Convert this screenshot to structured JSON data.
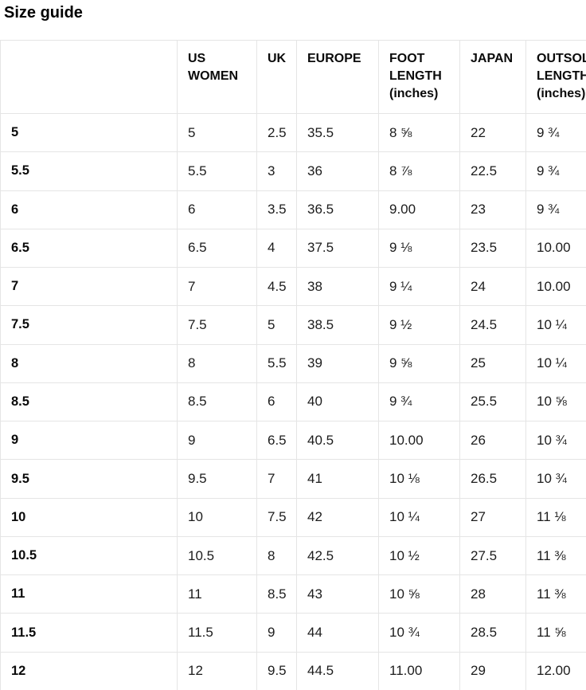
{
  "page": {
    "title": "Size guide"
  },
  "table": {
    "columns": [
      {
        "key": "size",
        "label": ""
      },
      {
        "key": "us-women",
        "label": "US WOMEN"
      },
      {
        "key": "uk",
        "label": "UK"
      },
      {
        "key": "europe",
        "label": "EUROPE"
      },
      {
        "key": "foot-length",
        "label": "FOOT LENGTH (inches)"
      },
      {
        "key": "japan",
        "label": "JAPAN"
      },
      {
        "key": "outsole-length",
        "label": "OUTSOLE LENGTH (inches)"
      }
    ],
    "rows": [
      [
        "5",
        "5",
        "2.5",
        "35.5",
        "8 ⅝",
        "22",
        "9 ¾"
      ],
      [
        "5.5",
        "5.5",
        "3",
        "36",
        "8 ⅞",
        "22.5",
        "9 ¾"
      ],
      [
        "6",
        "6",
        "3.5",
        "36.5",
        "9.00",
        "23",
        "9 ¾"
      ],
      [
        "6.5",
        "6.5",
        "4",
        "37.5",
        "9 ⅛",
        "23.5",
        "10.00"
      ],
      [
        "7",
        "7",
        "4.5",
        "38",
        "9 ¼",
        "24",
        "10.00"
      ],
      [
        "7.5",
        "7.5",
        "5",
        "38.5",
        "9 ½",
        "24.5",
        "10 ¼"
      ],
      [
        "8",
        "8",
        "5.5",
        "39",
        "9 ⅝",
        "25",
        "10 ¼"
      ],
      [
        "8.5",
        "8.5",
        "6",
        "40",
        "9 ¾",
        "25.5",
        "10 ⅝"
      ],
      [
        "9",
        "9",
        "6.5",
        "40.5",
        "10.00",
        "26",
        "10 ¾"
      ],
      [
        "9.5",
        "9.5",
        "7",
        "41",
        "10 ⅛",
        "26.5",
        "10 ¾"
      ],
      [
        "10",
        "10",
        "7.5",
        "42",
        "10 ¼",
        "27",
        "11 ⅛"
      ],
      [
        "10.5",
        "10.5",
        "8",
        "42.5",
        "10 ½",
        "27.5",
        "11 ⅜"
      ],
      [
        "11",
        "11",
        "8.5",
        "43",
        "10 ⅝",
        "28",
        "11 ⅜"
      ],
      [
        "11.5",
        "11.5",
        "9",
        "44",
        "10 ¾",
        "28.5",
        "11 ⅝"
      ],
      [
        "12",
        "12",
        "9.5",
        "44.5",
        "11.00",
        "29",
        "12.00"
      ]
    ]
  }
}
